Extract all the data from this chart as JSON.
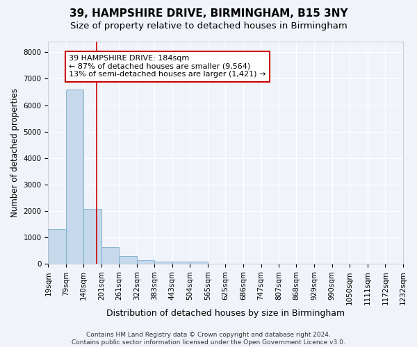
{
  "title1": "39, HAMPSHIRE DRIVE, BIRMINGHAM, B15 3NY",
  "title2": "Size of property relative to detached houses in Birmingham",
  "xlabel": "Distribution of detached houses by size in Birmingham",
  "ylabel": "Number of detached properties",
  "bar_left_edges": [
    19,
    79,
    140,
    201,
    261,
    322,
    383,
    443,
    504,
    565,
    625,
    686,
    747,
    807,
    868,
    929,
    990,
    1050,
    1111,
    1172
  ],
  "bar_heights": [
    1320,
    6600,
    2080,
    640,
    300,
    150,
    100,
    80,
    80,
    0,
    0,
    0,
    0,
    0,
    0,
    0,
    0,
    0,
    0,
    0
  ],
  "bar_color": "#c5d8ec",
  "bar_edgecolor": "#7aaac8",
  "tick_labels": [
    "19sqm",
    "79sqm",
    "140sqm",
    "201sqm",
    "261sqm",
    "322sqm",
    "383sqm",
    "443sqm",
    "504sqm",
    "565sqm",
    "625sqm",
    "686sqm",
    "747sqm",
    "807sqm",
    "868sqm",
    "929sqm",
    "990sqm",
    "1050sqm",
    "1111sqm",
    "1172sqm",
    "1232sqm"
  ],
  "red_line_x": 184,
  "annotation_text_line1": "39 HAMPSHIRE DRIVE: 184sqm",
  "annotation_text_line2": "← 87% of detached houses are smaller (9,564)",
  "annotation_text_line3": "13% of semi-detached houses are larger (1,421) →",
  "annotation_box_facecolor": "#ffffff",
  "annotation_box_edgecolor": "#cc0000",
  "ylim": [
    0,
    8400
  ],
  "yticks": [
    0,
    1000,
    2000,
    3000,
    4000,
    5000,
    6000,
    7000,
    8000
  ],
  "bg_color": "#f0f4fa",
  "plot_bg_color": "#f0f4fa",
  "grid_color": "#ffffff",
  "footnote": "Contains HM Land Registry data © Crown copyright and database right 2024.\nContains public sector information licensed under the Open Government Licence v3.0.",
  "title1_fontsize": 11,
  "title2_fontsize": 9.5,
  "xlabel_fontsize": 9,
  "ylabel_fontsize": 8.5,
  "tick_fontsize": 7.5,
  "annotation_fontsize": 8,
  "footnote_fontsize": 6.5
}
